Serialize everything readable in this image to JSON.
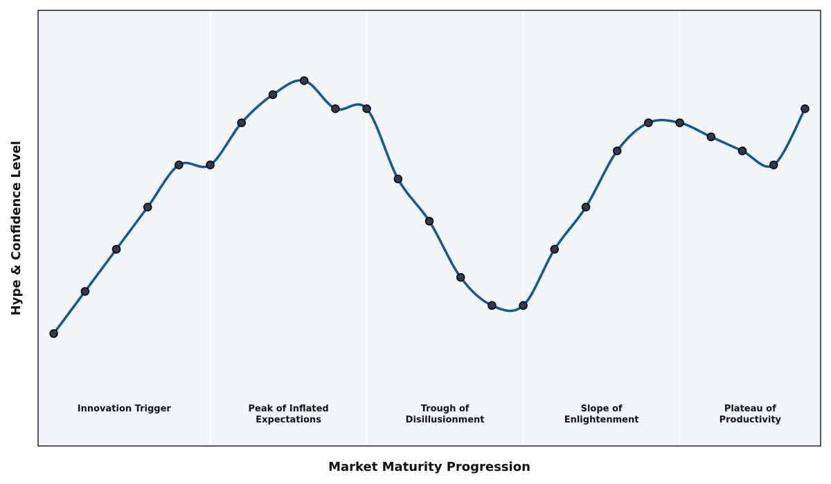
{
  "chart_data": {
    "type": "line",
    "xlabel": "Market Maturity Progression",
    "ylabel": "Hype & Confidence Level",
    "xlim": [
      0.5,
      25.5
    ],
    "ylim": [
      0,
      15.5
    ],
    "grid": false,
    "x": [
      1,
      2,
      3,
      4,
      5,
      6,
      7,
      8,
      9,
      10,
      11,
      12,
      13,
      14,
      15,
      16,
      17,
      18,
      19,
      20,
      21,
      22,
      23,
      24,
      25
    ],
    "y": [
      4,
      5.5,
      7,
      8.5,
      10,
      10,
      11.5,
      12.5,
      13,
      12,
      12,
      9.5,
      8,
      6,
      5,
      5,
      7,
      8.5,
      10.5,
      11.5,
      11.5,
      11,
      10.5,
      10,
      12
    ],
    "phases": [
      {
        "label_lines": [
          "Innovation Trigger"
        ],
        "start": 0.5,
        "end": 6
      },
      {
        "label_lines": [
          "Peak of Inflated",
          "Expectations"
        ],
        "start": 6,
        "end": 11
      },
      {
        "label_lines": [
          "Trough of",
          "Disillusionment"
        ],
        "start": 11,
        "end": 16
      },
      {
        "label_lines": [
          "Slope of",
          "Enlightenment"
        ],
        "start": 16,
        "end": 21
      },
      {
        "label_lines": [
          "Plateau of",
          "Productivity"
        ],
        "start": 21,
        "end": 25.5
      }
    ],
    "colors": {
      "line": "#0b57a0",
      "marker_fill": "#2e3a4e",
      "marker_edge": "#000000",
      "plot_background": "#f2f6fb",
      "phase_divider": "#ffffff",
      "frame": "#222222"
    }
  }
}
